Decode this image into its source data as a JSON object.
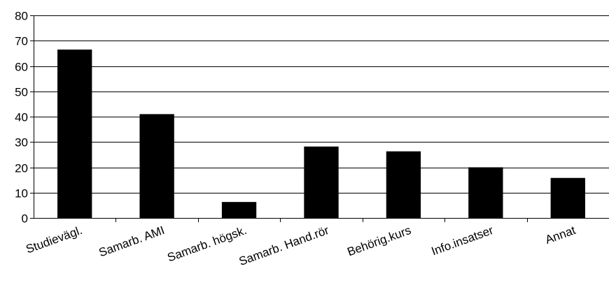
{
  "chart_data": {
    "type": "bar",
    "categories": [
      "Studievägl.",
      "Samarb. AMI",
      "Samarb. högsk.",
      "Samarb. Hand.rör",
      "Behörig.kurs",
      "Info.insatser",
      "Annat"
    ],
    "values": [
      66.5,
      41,
      6.3,
      28.2,
      26.3,
      20,
      15.8
    ],
    "title": "",
    "xlabel": "",
    "ylabel": "",
    "ylim": [
      0,
      80
    ],
    "yticks": [
      0,
      10,
      20,
      30,
      40,
      50,
      60,
      70,
      80
    ],
    "grid": true,
    "legend": "none",
    "bar_color": "#000000",
    "grid_color": "#000000"
  }
}
